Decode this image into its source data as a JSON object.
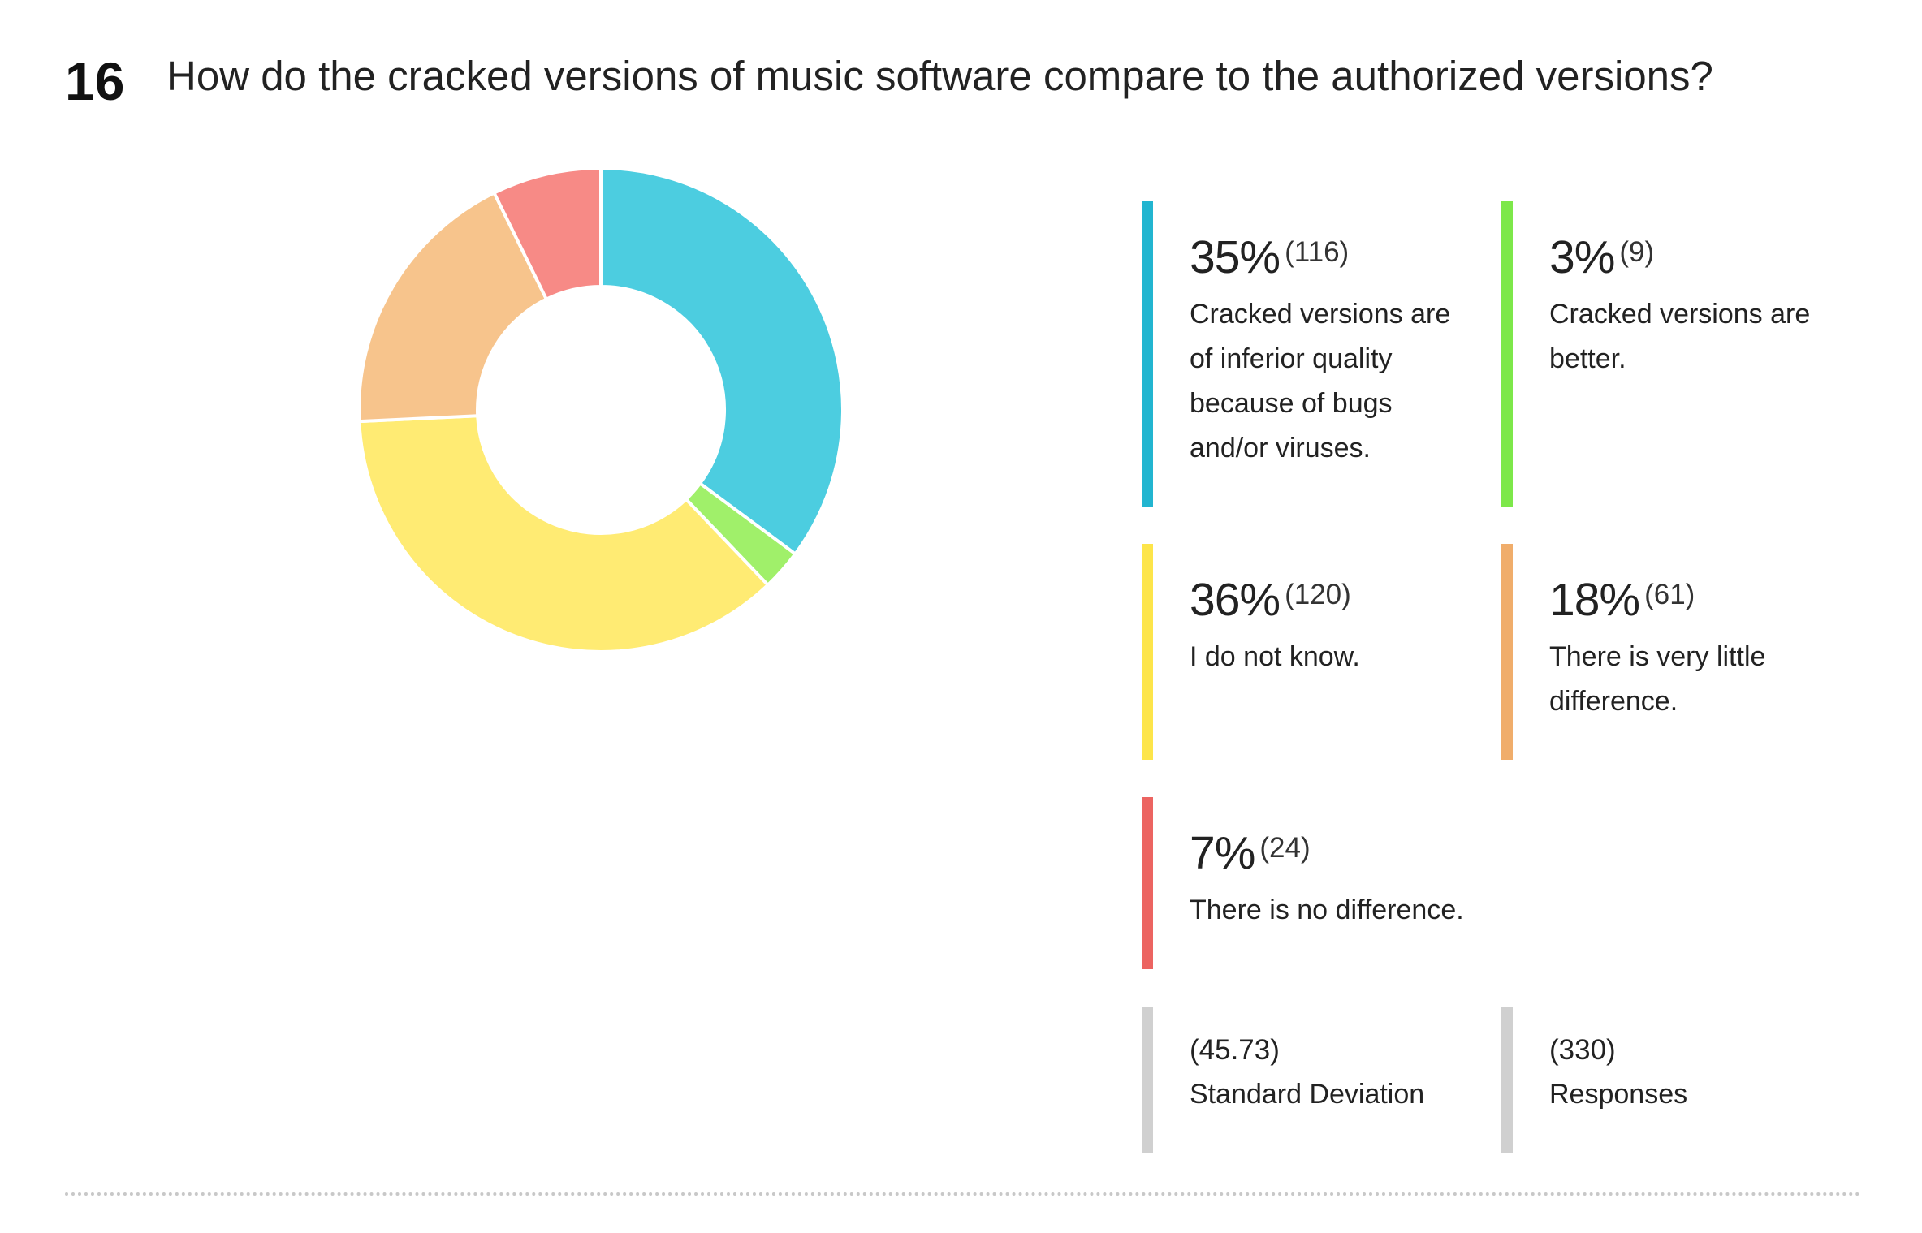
{
  "question": {
    "number": "16",
    "title": "How do the cracked versions of music software compare to the authorized versions?"
  },
  "chart_data": {
    "type": "pie",
    "donut": true,
    "title": "How do the cracked versions of music software compare to the authorized versions?",
    "slices": [
      {
        "label": "Cracked versions are of inferior quality because of bugs and/or viruses.",
        "percent": 35,
        "count": 116,
        "color": "#4ccde0",
        "bar_color": "#22b5d0"
      },
      {
        "label": "Cracked versions are better.",
        "percent": 3,
        "count": 9,
        "color": "#a0f06a",
        "bar_color": "#7de84a"
      },
      {
        "label": "I do not know.",
        "percent": 36,
        "count": 120,
        "color": "#ffeb73",
        "bar_color": "#fde54a"
      },
      {
        "label": "There is very little difference.",
        "percent": 18,
        "count": 61,
        "color": "#f7c48c",
        "bar_color": "#f0ad6b"
      },
      {
        "label": "There is no difference.",
        "percent": 7,
        "count": 24,
        "color": "#f78a86",
        "bar_color": "#ec6461"
      }
    ],
    "stats": {
      "std_dev_value": "(45.73)",
      "std_dev_label": "Standard Deviation",
      "responses_value": "(330)",
      "responses_label": "Responses"
    }
  },
  "legend": [
    {
      "pct": "35%",
      "count": "(116)",
      "label": "Cracked versions are of inferior quality because of bugs and/or viruses.",
      "color": "#22b5d0"
    },
    {
      "pct": "3%",
      "count": "(9)",
      "label": "Cracked versions are better.",
      "color": "#7de84a"
    },
    {
      "pct": "36%",
      "count": "(120)",
      "label": "I do not know.",
      "color": "#fde54a"
    },
    {
      "pct": "18%",
      "count": "(61)",
      "label": "There is very little difference.",
      "color": "#f0ad6b"
    },
    {
      "pct": "7%",
      "count": "(24)",
      "label": "There is no difference.",
      "color": "#ec6461"
    }
  ],
  "stats_color": "#d0d0d0"
}
